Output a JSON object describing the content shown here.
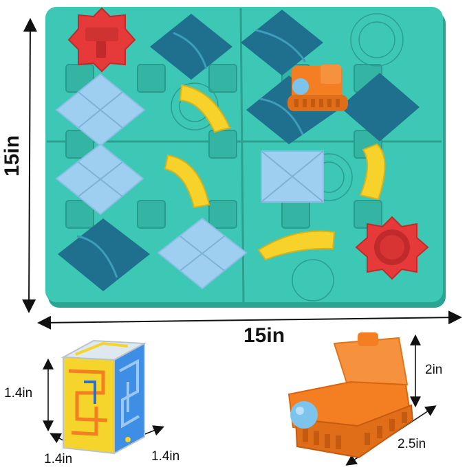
{
  "colors": {
    "board": "#3cc8b4",
    "board_dark": "#2fa898",
    "tile_dark_blue": "#1f6f8e",
    "tile_light_blue": "#9fcff0",
    "road_yellow": "#f7d22a",
    "piece_red": "#e63a3a",
    "car_orange": "#f47e22",
    "ball_blue": "#7cc4ec",
    "cube_yellow": "#f5d42b",
    "cube_blue": "#3f8ee6"
  },
  "icons": [
    "arrow-icon",
    "road-tile-icon",
    "toy-car-icon",
    "maze-cube-icon",
    "start-piece-icon",
    "finish-piece-icon"
  ],
  "dimensions": {
    "board_height": "15in",
    "board_width": "15in",
    "cube_height": "1.4in",
    "cube_depth": "1.4in",
    "cube_width": "1.4in",
    "car_height": "2in",
    "car_length": "2.5in"
  }
}
